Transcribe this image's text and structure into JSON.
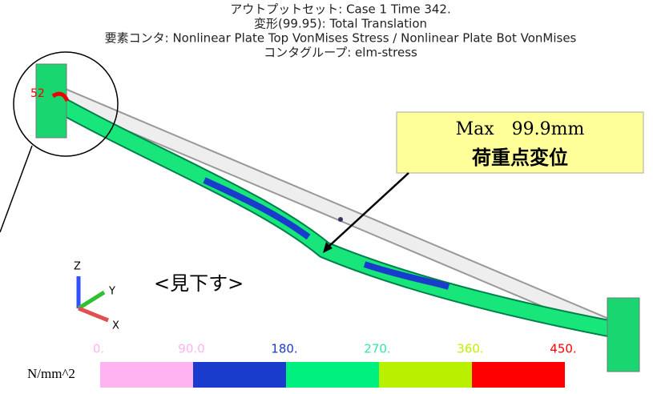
{
  "header": {
    "lines": [
      "アウトプットセット: Case 1 Time 342.",
      "変形(99.95): Total Translation",
      "要素コンタ: Nonlinear Plate Top VonMises Stress / Nonlinear Plate Bot VonMises",
      "コンタグループ: elm-stress"
    ]
  },
  "callout": {
    "line1": "Max　99.9mm",
    "line2": "荷重点変位"
  },
  "view_label": "<見下す>",
  "node_label": "52",
  "triad": {
    "z": "Z",
    "y": "Y",
    "x": "X"
  },
  "legend": {
    "unit": "N/mm^2",
    "labels": [
      {
        "text": "0.",
        "color": "#ffb3f0"
      },
      {
        "text": "90.0",
        "color": "#ffb3f0"
      },
      {
        "text": "180.",
        "color": "#1a3ccc"
      },
      {
        "text": "270.",
        "color": "#33e6a0"
      },
      {
        "text": "360.",
        "color": "#c0f000"
      },
      {
        "text": "450.",
        "color": "#ff0000"
      }
    ],
    "swatches": [
      "#ffb3f0",
      "#1a3ccc",
      "#00f080",
      "#b8f000",
      "#ff0000"
    ]
  }
}
